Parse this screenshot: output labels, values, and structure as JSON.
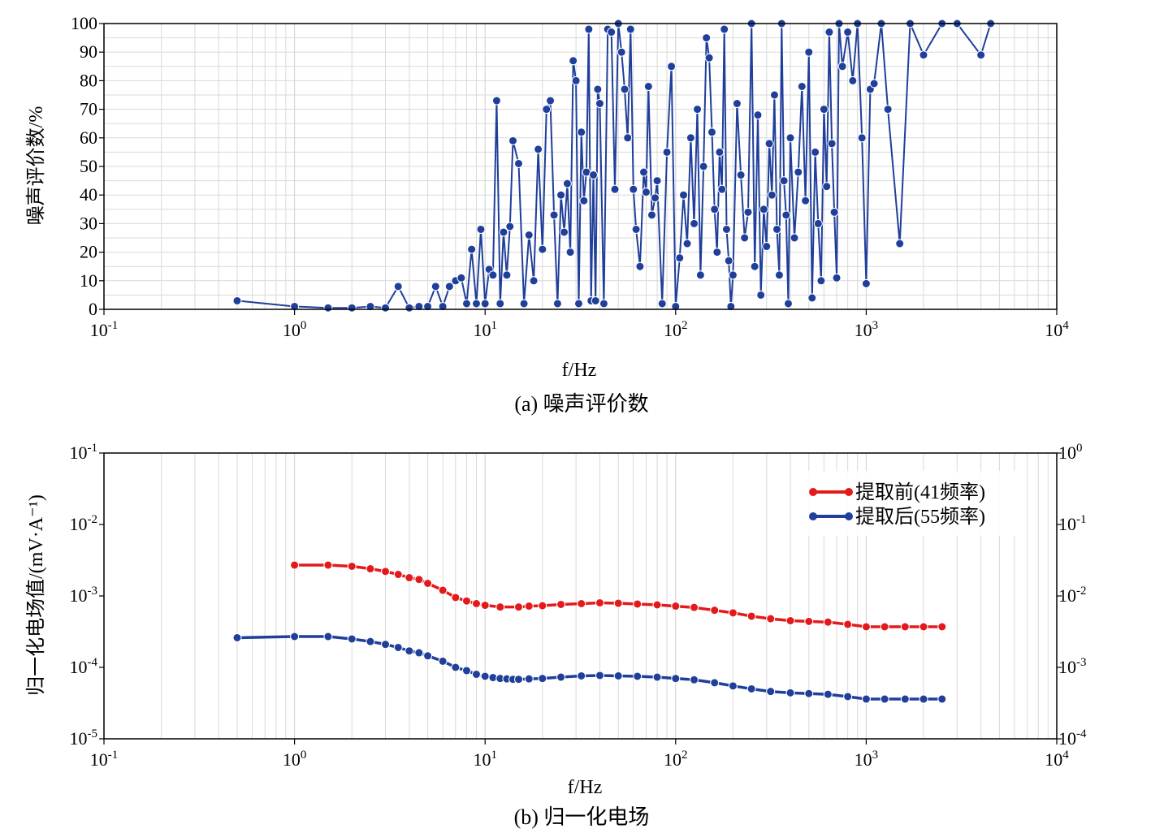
{
  "chart_data": [
    {
      "type": "scatter",
      "caption": "(a) 噪声评价数",
      "ylabel": "噪声评价数/%",
      "xlabel": "f/Hz",
      "xscale": "log",
      "xlim_exp": [
        -1,
        4
      ],
      "ylim": [
        0,
        100
      ],
      "grid": true,
      "series": [
        {
          "color": "#1f3f9a",
          "points": [
            [
              0.5,
              3
            ],
            [
              1,
              1
            ],
            [
              1.5,
              0.5
            ],
            [
              2,
              0.5
            ],
            [
              2.5,
              1
            ],
            [
              3,
              0.5
            ],
            [
              3.5,
              8
            ],
            [
              4,
              0.5
            ],
            [
              4.5,
              1
            ],
            [
              5,
              1
            ],
            [
              5.5,
              8
            ],
            [
              6,
              1
            ],
            [
              6.5,
              8
            ],
            [
              7,
              10
            ],
            [
              7.5,
              11
            ],
            [
              8,
              2
            ],
            [
              8.5,
              21
            ],
            [
              9,
              2
            ],
            [
              9.5,
              28
            ],
            [
              10,
              2
            ],
            [
              10.5,
              14
            ],
            [
              11,
              12
            ],
            [
              11.5,
              73
            ],
            [
              12,
              2
            ],
            [
              12.5,
              27
            ],
            [
              13,
              12
            ],
            [
              13.5,
              29
            ],
            [
              14,
              59
            ],
            [
              15,
              51
            ],
            [
              16,
              2
            ],
            [
              17,
              26
            ],
            [
              18,
              10
            ],
            [
              19,
              56
            ],
            [
              20,
              21
            ],
            [
              21,
              70
            ],
            [
              22,
              73
            ],
            [
              23,
              33
            ],
            [
              24,
              2
            ],
            [
              25,
              40
            ],
            [
              26,
              27
            ],
            [
              27,
              44
            ],
            [
              28,
              20
            ],
            [
              29,
              87
            ],
            [
              30,
              80
            ],
            [
              31,
              2
            ],
            [
              32,
              62
            ],
            [
              33,
              38
            ],
            [
              34,
              48
            ],
            [
              35,
              98
            ],
            [
              36,
              3
            ],
            [
              37,
              47
            ],
            [
              38,
              3
            ],
            [
              39,
              77
            ],
            [
              40,
              72
            ],
            [
              42,
              2
            ],
            [
              44,
              98
            ],
            [
              46,
              97
            ],
            [
              48,
              42
            ],
            [
              50,
              100
            ],
            [
              52,
              90
            ],
            [
              54,
              77
            ],
            [
              56,
              60
            ],
            [
              58,
              98
            ],
            [
              60,
              42
            ],
            [
              62,
              28
            ],
            [
              65,
              15
            ],
            [
              68,
              48
            ],
            [
              70,
              41
            ],
            [
              72,
              78
            ],
            [
              75,
              33
            ],
            [
              78,
              39
            ],
            [
              80,
              45
            ],
            [
              85,
              2
            ],
            [
              90,
              55
            ],
            [
              95,
              85
            ],
            [
              100,
              1
            ],
            [
              105,
              18
            ],
            [
              110,
              40
            ],
            [
              115,
              23
            ],
            [
              120,
              60
            ],
            [
              125,
              30
            ],
            [
              130,
              70
            ],
            [
              135,
              12
            ],
            [
              140,
              50
            ],
            [
              145,
              95
            ],
            [
              150,
              88
            ],
            [
              155,
              62
            ],
            [
              160,
              35
            ],
            [
              165,
              20
            ],
            [
              170,
              55
            ],
            [
              175,
              42
            ],
            [
              180,
              98
            ],
            [
              185,
              28
            ],
            [
              190,
              17
            ],
            [
              195,
              1
            ],
            [
              200,
              12
            ],
            [
              210,
              72
            ],
            [
              220,
              47
            ],
            [
              230,
              25
            ],
            [
              240,
              34
            ],
            [
              250,
              100
            ],
            [
              260,
              15
            ],
            [
              270,
              68
            ],
            [
              280,
              5
            ],
            [
              290,
              35
            ],
            [
              300,
              22
            ],
            [
              310,
              58
            ],
            [
              320,
              40
            ],
            [
              330,
              75
            ],
            [
              340,
              28
            ],
            [
              350,
              12
            ],
            [
              360,
              100
            ],
            [
              370,
              45
            ],
            [
              380,
              33
            ],
            [
              390,
              2
            ],
            [
              400,
              60
            ],
            [
              420,
              25
            ],
            [
              440,
              48
            ],
            [
              460,
              78
            ],
            [
              480,
              38
            ],
            [
              500,
              90
            ],
            [
              520,
              4
            ],
            [
              540,
              55
            ],
            [
              560,
              30
            ],
            [
              580,
              10
            ],
            [
              600,
              70
            ],
            [
              620,
              43
            ],
            [
              640,
              97
            ],
            [
              660,
              58
            ],
            [
              680,
              34
            ],
            [
              700,
              11
            ],
            [
              720,
              100
            ],
            [
              750,
              85
            ],
            [
              800,
              97
            ],
            [
              850,
              80
            ],
            [
              900,
              100
            ],
            [
              950,
              60
            ],
            [
              1000,
              9
            ],
            [
              1050,
              77
            ],
            [
              1100,
              79
            ],
            [
              1200,
              100
            ],
            [
              1300,
              70
            ],
            [
              1500,
              23
            ],
            [
              1700,
              100
            ],
            [
              2000,
              89
            ],
            [
              2500,
              100
            ],
            [
              3000,
              100
            ],
            [
              4000,
              89
            ],
            [
              4500,
              100
            ]
          ]
        }
      ]
    },
    {
      "type": "line",
      "caption": "(b) 归一化电场",
      "ylabel": "归一化电场值/(mV·A⁻¹)",
      "xlabel": "f/Hz",
      "xscale": "log",
      "yscale": "log",
      "xlim_exp": [
        -1,
        4
      ],
      "ylim_exp": [
        -5,
        -1
      ],
      "y2lim_exp": [
        -4,
        0
      ],
      "grid": true,
      "legend_position": "top-right",
      "series": [
        {
          "name": "提取前(41频率)",
          "color": "#e31a1c",
          "points": [
            [
              1,
              0.0027
            ],
            [
              1.5,
              0.0027
            ],
            [
              2,
              0.0026
            ],
            [
              2.5,
              0.0024
            ],
            [
              3,
              0.0022
            ],
            [
              3.5,
              0.002
            ],
            [
              4,
              0.0018
            ],
            [
              4.5,
              0.0017
            ],
            [
              5,
              0.0015
            ],
            [
              6,
              0.0012
            ],
            [
              7,
              0.00095
            ],
            [
              8,
              0.00085
            ],
            [
              9,
              0.00078
            ],
            [
              10,
              0.00074
            ],
            [
              12,
              0.0007
            ],
            [
              15,
              0.0007
            ],
            [
              17,
              0.00072
            ],
            [
              20,
              0.00073
            ],
            [
              25,
              0.00076
            ],
            [
              32,
              0.00078
            ],
            [
              40,
              0.0008
            ],
            [
              50,
              0.00079
            ],
            [
              63,
              0.00077
            ],
            [
              80,
              0.00075
            ],
            [
              100,
              0.00072
            ],
            [
              125,
              0.00069
            ],
            [
              160,
              0.00063
            ],
            [
              200,
              0.00058
            ],
            [
              250,
              0.00052
            ],
            [
              315,
              0.00048
            ],
            [
              400,
              0.00045
            ],
            [
              500,
              0.00044
            ],
            [
              630,
              0.00043
            ],
            [
              800,
              0.0004
            ],
            [
              1000,
              0.00037
            ],
            [
              1250,
              0.00037
            ],
            [
              1600,
              0.00037
            ],
            [
              2000,
              0.00037
            ],
            [
              2500,
              0.00037
            ]
          ]
        },
        {
          "name": "提取后(55频率)",
          "color": "#1f3f9a",
          "points": [
            [
              0.5,
              0.00026
            ],
            [
              1,
              0.00027
            ],
            [
              1.5,
              0.00027
            ],
            [
              2,
              0.00025
            ],
            [
              2.5,
              0.00023
            ],
            [
              3,
              0.00021
            ],
            [
              3.5,
              0.00019
            ],
            [
              4,
              0.00017
            ],
            [
              4.5,
              0.00016
            ],
            [
              5,
              0.000145
            ],
            [
              6,
              0.000122
            ],
            [
              7,
              0.0001
            ],
            [
              8,
              9e-05
            ],
            [
              9,
              8e-05
            ],
            [
              10,
              7.5e-05
            ],
            [
              11,
              7.2e-05
            ],
            [
              12,
              7e-05
            ],
            [
              13,
              6.9e-05
            ],
            [
              14,
              6.8e-05
            ],
            [
              15,
              6.8e-05
            ],
            [
              17,
              6.9e-05
            ],
            [
              20,
              7e-05
            ],
            [
              25,
              7.3e-05
            ],
            [
              32,
              7.6e-05
            ],
            [
              40,
              7.7e-05
            ],
            [
              50,
              7.6e-05
            ],
            [
              63,
              7.5e-05
            ],
            [
              80,
              7.3e-05
            ],
            [
              100,
              7e-05
            ],
            [
              125,
              6.7e-05
            ],
            [
              160,
              6.1e-05
            ],
            [
              200,
              5.5e-05
            ],
            [
              250,
              5e-05
            ],
            [
              315,
              4.6e-05
            ],
            [
              400,
              4.4e-05
            ],
            [
              500,
              4.3e-05
            ],
            [
              630,
              4.2e-05
            ],
            [
              800,
              3.9e-05
            ],
            [
              1000,
              3.6e-05
            ],
            [
              1250,
              3.6e-05
            ],
            [
              1600,
              3.6e-05
            ],
            [
              2000,
              3.6e-05
            ],
            [
              2500,
              3.6e-05
            ]
          ]
        }
      ]
    }
  ]
}
